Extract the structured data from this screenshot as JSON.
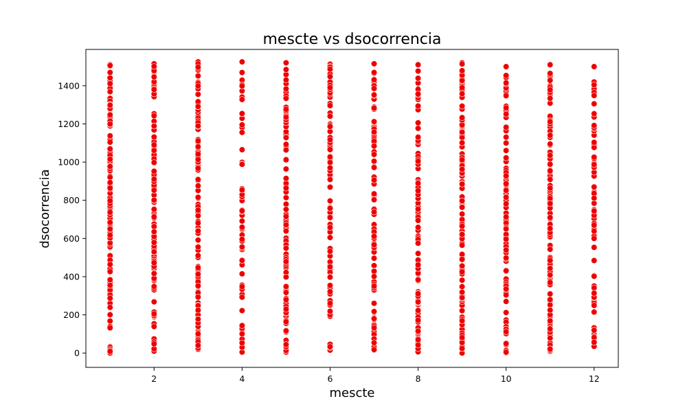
{
  "chart_data": {
    "type": "scatter",
    "title": "mescte vs dsocorrencia",
    "xlabel": "mescte",
    "ylabel": "dsocorrencia",
    "xlim": [
      0.45,
      12.55
    ],
    "ylim": [
      -75,
      1590
    ],
    "xticks": [
      2,
      4,
      6,
      8,
      10,
      12
    ],
    "yticks": [
      0,
      200,
      400,
      600,
      800,
      1000,
      1200,
      1400
    ],
    "grid": false,
    "marker_color": "#ee0000",
    "marker_edge_color": "#ffffff",
    "series": [
      {
        "x": 1,
        "y_min": 0,
        "y_max": 1510,
        "count": 130
      },
      {
        "x": 2,
        "y_min": 10,
        "y_max": 1515,
        "count": 110
      },
      {
        "x": 3,
        "y_min": 20,
        "y_max": 1525,
        "count": 140
      },
      {
        "x": 4,
        "y_min": 5,
        "y_max": 1525,
        "count": 60
      },
      {
        "x": 5,
        "y_min": 5,
        "y_max": 1520,
        "count": 100
      },
      {
        "x": 6,
        "y_min": 15,
        "y_max": 1515,
        "count": 90
      },
      {
        "x": 7,
        "y_min": 15,
        "y_max": 1515,
        "count": 90
      },
      {
        "x": 8,
        "y_min": 5,
        "y_max": 1510,
        "count": 120
      },
      {
        "x": 9,
        "y_min": 0,
        "y_max": 1520,
        "count": 130
      },
      {
        "x": 10,
        "y_min": 0,
        "y_max": 1500,
        "count": 110
      },
      {
        "x": 11,
        "y_min": 10,
        "y_max": 1510,
        "count": 120
      },
      {
        "x": 12,
        "y_min": 35,
        "y_max": 1500,
        "count": 80
      }
    ]
  }
}
